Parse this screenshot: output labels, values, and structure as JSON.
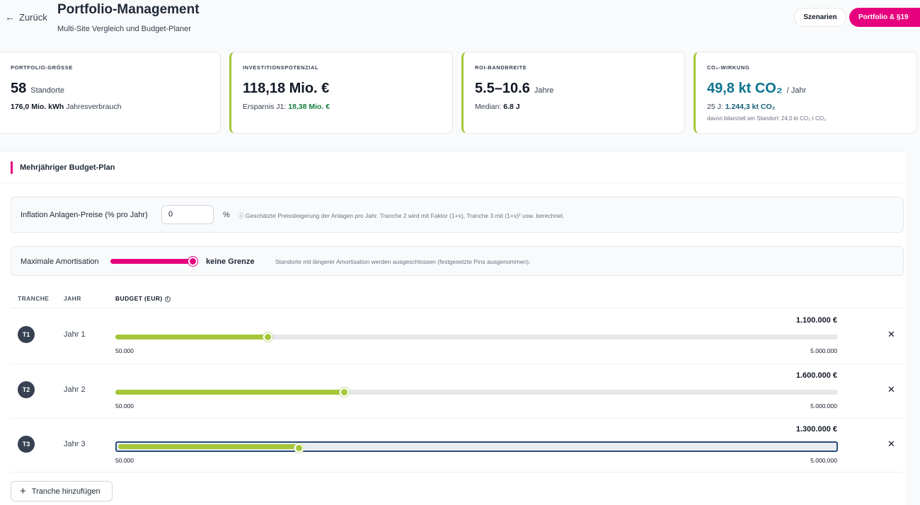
{
  "header": {
    "back_label": "Zurück",
    "title": "Portfolio-Management",
    "subtitle": "Multi-Site Vergleich und Budget-Planer",
    "scenarios_button": "Szenarien",
    "portfolio_button": "Portfolio & §19"
  },
  "kpis": {
    "size": {
      "label": "PORTFOLIO-GRÖSSE",
      "value": "58",
      "unit": "Standorte",
      "sub_value": "176,0 Mio. kWh",
      "sub_text": "Jahresverbrauch"
    },
    "invest": {
      "label": "INVESTITIONSPOTENZIAL",
      "value": "118,18 Mio. €",
      "sub_text": "Ersparnis J1:",
      "sub_value": "18,38 Mio. €"
    },
    "roi": {
      "label": "ROI-BANDBREITE",
      "value": "5.5–10.6",
      "unit": "Jahre",
      "sub_text": "Median:",
      "sub_value": "6.8 J"
    },
    "co2": {
      "label": "CO₂-WIRKUNG",
      "value": "49,8 kt CO₂",
      "unit": "/ Jahr",
      "sub_text": "25 J:",
      "sub_value": "1.244,3 kt CO₂",
      "tiny": "davon bilanziell am Standort: 24,0 kt CO₂ t CO₂"
    }
  },
  "budget_plan": {
    "section_title": "Mehrjähriger Budget-Plan",
    "inflation": {
      "label": "Inflation Anlagen-Preise (% pro Jahr)",
      "value": "0",
      "unit": "%",
      "hint": "ⓘ Geschätzte Preissteigerung der Anlagen pro Jahr. Tranche 2 wird mit Faktor (1+x), Tranche 3 mit (1+x)² usw. berechnet."
    },
    "amortization": {
      "label": "Maximale Amortisation",
      "value_label": "keine Grenze",
      "hint": "Standorte mit längerer Amortisation werden ausgeschlossen (festgesetzte Pins ausgenommen)."
    },
    "columns": {
      "tranche": "TRANCHE",
      "year": "JAHR",
      "budget": "BUDGET (EUR)"
    },
    "tranches": [
      {
        "badge": "T1",
        "year": "Jahr 1",
        "amount": "1.100.000 €",
        "min": "50.000",
        "max": "5.000.000",
        "fraction": 0.212
      },
      {
        "badge": "T2",
        "year": "Jahr 2",
        "amount": "1.600.000 €",
        "min": "50.000",
        "max": "5.000.000",
        "fraction": 0.317
      },
      {
        "badge": "T3",
        "year": "Jahr 3",
        "amount": "1.300.000 €",
        "min": "50.000",
        "max": "5.000.000",
        "fraction": 0.254
      }
    ],
    "add_button": "Tranche hinzufügen"
  }
}
